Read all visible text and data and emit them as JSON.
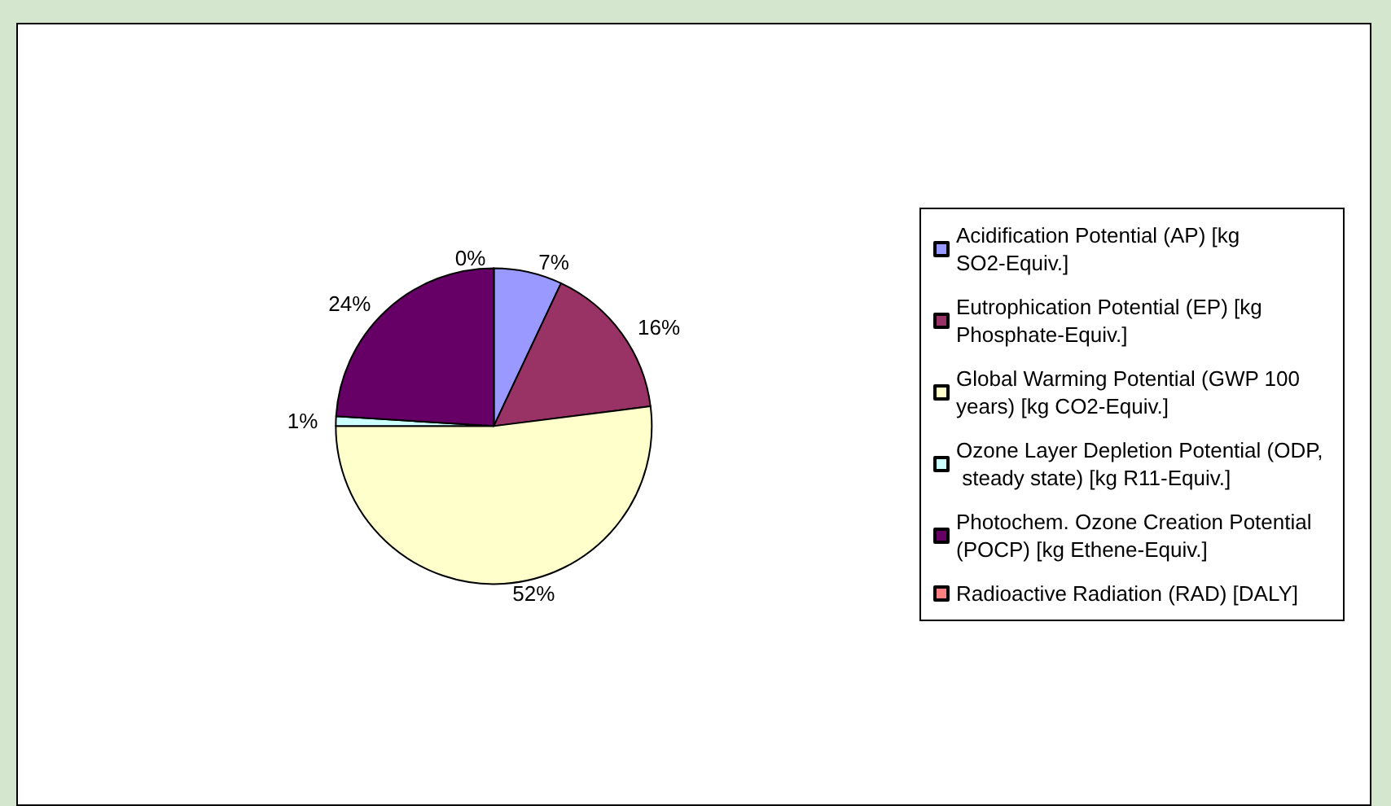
{
  "chart_data": {
    "type": "pie",
    "categories": [
      "Acidification Potential (AP) [kg SO2-Equiv.]",
      "Eutrophication Potential (EP) [kg Phosphate-Equiv.]",
      "Global Warming Potential (GWP 100 years) [kg CO2-Equiv.]",
      "Ozone Layer Depletion Potential (ODP, steady state) [kg R11-Equiv.]",
      "Photochem. Ozone Creation Potential (POCP) [kg Ethene-Equiv.]",
      "Radioactive Radiation (RAD) [DALY]"
    ],
    "values": [
      7,
      16,
      52,
      1,
      24,
      0
    ],
    "value_labels": [
      "7%",
      "16%",
      "52%",
      "1%",
      "24%",
      "0%"
    ],
    "colors": [
      "#9999ff",
      "#993366",
      "#ffffcc",
      "#ccffff",
      "#660066",
      "#ff8080"
    ],
    "legend": "right"
  }
}
